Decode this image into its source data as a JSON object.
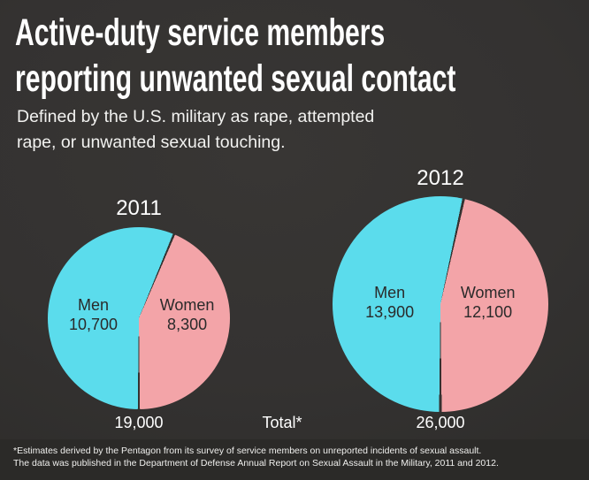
{
  "title": {
    "line1": "Active-duty service members",
    "line2": "reporting unwanted sexual contact"
  },
  "subtitle": {
    "line1": "Defined by the U.S. military as rape, attempted",
    "line2": "rape, or unwanted sexual touching."
  },
  "total_caption": "Total*",
  "footnote": {
    "line1": "*Estimates derived by the Pentagon from its survey of service members on unreported incidents of sexual assault.",
    "line2": "The data was published in the Department of Defense Annual Report on Sexual Assault in the Military, 2011 and 2012."
  },
  "colors": {
    "men_slice": "#5bdcec",
    "women_slice": "#f3a4a8",
    "slice_divider": "#343231",
    "background": "#343231",
    "footer_background": "#2b2a28",
    "light_text": "#ffffff",
    "dark_text": "#2a2a2a"
  },
  "chart_data": [
    {
      "type": "pie",
      "title": "2011",
      "legend_position": "inside",
      "series": [
        {
          "name": "Men",
          "value": 10700,
          "display": "10,700",
          "color": "#5bdcec"
        },
        {
          "name": "Women",
          "value": 8300,
          "display": "8,300",
          "color": "#f3a4a8"
        }
      ],
      "total": 19000,
      "total_display": "19,000"
    },
    {
      "type": "pie",
      "title": "2012",
      "legend_position": "inside",
      "series": [
        {
          "name": "Men",
          "value": 13900,
          "display": "13,900",
          "color": "#5bdcec"
        },
        {
          "name": "Women",
          "value": 12100,
          "display": "12,100",
          "color": "#f3a4a8"
        }
      ],
      "total": 26000,
      "total_display": "26,000"
    }
  ]
}
